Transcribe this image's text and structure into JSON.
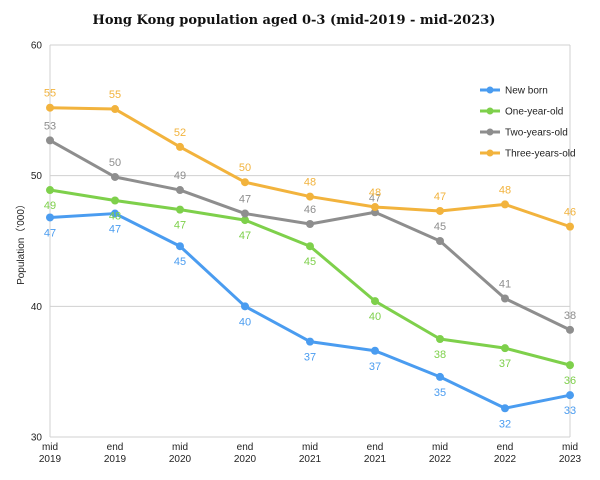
{
  "chart_data": {
    "type": "line",
    "title": "Hong Kong population aged 0-3 (mid-2019 - mid-2023)",
    "ylabel": "Population（'000）",
    "xlabel": "",
    "ylim": [
      30,
      60
    ],
    "yticks": [
      30,
      40,
      50,
      60
    ],
    "categories": [
      [
        "mid",
        "2019"
      ],
      [
        "end",
        "2019"
      ],
      [
        "mid",
        "2020"
      ],
      [
        "end",
        "2020"
      ],
      [
        "mid",
        "2021"
      ],
      [
        "end",
        "2021"
      ],
      [
        "mid",
        "2022"
      ],
      [
        "end",
        "2022"
      ],
      [
        "mid",
        "2023"
      ]
    ],
    "legend_position": "top-right",
    "grid": "horizontal",
    "series": [
      {
        "name": "New born",
        "color": "#4a9cf0",
        "values": [
          46.8,
          47.1,
          44.6,
          40.0,
          37.3,
          36.6,
          34.6,
          32.2,
          33.2
        ],
        "labels": [
          "47",
          "47",
          "45",
          "40",
          "37",
          "37",
          "35",
          "32",
          "33"
        ],
        "label_pos": "below"
      },
      {
        "name": "One-year-old",
        "color": "#7ed04b",
        "values": [
          48.9,
          48.1,
          47.4,
          46.6,
          44.6,
          40.4,
          37.5,
          36.8,
          35.5
        ],
        "labels": [
          "49",
          "48",
          "47",
          "47",
          "45",
          "40",
          "38",
          "37",
          "36"
        ],
        "label_pos": "below"
      },
      {
        "name": "Two-years-old",
        "color": "#8e8e8e",
        "values": [
          52.7,
          49.9,
          48.9,
          47.1,
          46.3,
          47.2,
          45.0,
          40.6,
          38.2
        ],
        "labels": [
          "53",
          "50",
          "49",
          "47",
          "46",
          "47",
          "45",
          "41",
          "38"
        ],
        "label_pos": "above"
      },
      {
        "name": "Three-years-old",
        "color": "#f2b33d",
        "values": [
          55.2,
          55.1,
          52.2,
          49.5,
          48.4,
          47.6,
          47.3,
          47.8,
          46.1
        ],
        "labels": [
          "55",
          "55",
          "52",
          "50",
          "48",
          "48",
          "47",
          "48",
          "46"
        ],
        "label_pos": "above"
      }
    ]
  }
}
